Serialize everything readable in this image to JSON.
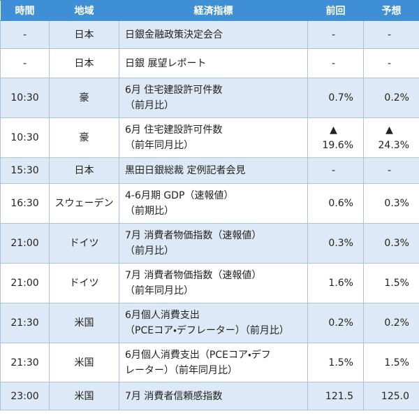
{
  "table": {
    "header": [
      "時間",
      "地域",
      "経済指標",
      "前回",
      "予想"
    ],
    "rows": [
      [
        "-",
        "日本",
        [
          "日銀金融政策決定会合"
        ],
        "-",
        "-"
      ],
      [
        "-",
        "日本",
        [
          "日銀 展望レポート"
        ],
        "-",
        "-"
      ],
      [
        "10:30",
        "豪",
        [
          "6月 住宅建設許可件数",
          "（前月比）"
        ],
        "0.7%",
        "0.2%"
      ],
      [
        "10:30",
        "豪",
        [
          "6月 住宅建設許可件数",
          "（前年同月比）"
        ],
        [
          "▲",
          "19.6%"
        ],
        [
          "▲",
          "24.3%"
        ]
      ],
      [
        "15:30",
        "日本",
        [
          "黒田日銀総裁 定例記者会見"
        ],
        "-",
        "-"
      ],
      [
        "16:30",
        "スウェーデン",
        [
          "4-6月期 GDP（速報値）",
          "（前期比）"
        ],
        "0.6%",
        "0.3%"
      ],
      [
        "21:00",
        "ドイツ",
        [
          "7月 消費者物価指数（速報値）",
          "（前月比）"
        ],
        "0.3%",
        "0.3%"
      ],
      [
        "21:00",
        "ドイツ",
        [
          "7月 消費者物価指数（速報値）",
          "（前年同月比）"
        ],
        "1.6%",
        "1.5%"
      ],
      [
        "21:30",
        "米国",
        [
          "6月個人消費支出",
          "（PCEコア・デフレーター）（前月比）"
        ],
        "0.2%",
        "0.2%"
      ],
      [
        "21:30",
        "米国",
        [
          "6月個人消費支出（PCEコア・デフ",
          "レーター）（前年同月比）"
        ],
        "1.5%",
        "1.5%"
      ],
      [
        "23:00",
        "米国",
        [
          "7月 消費者信頼感指数"
        ],
        "121.5",
        "125.0"
      ]
    ]
  }
}
